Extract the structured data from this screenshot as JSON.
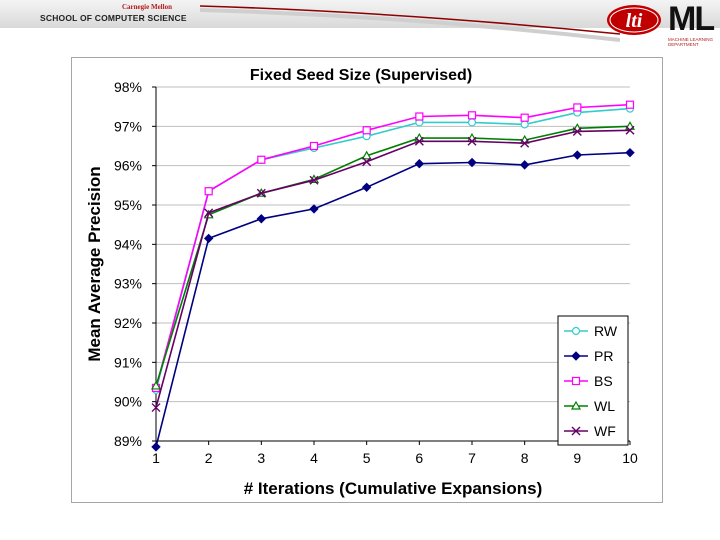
{
  "header": {
    "org_small": "Carnegie Mellon",
    "school": "SCHOOL OF COMPUTER SCIENCE",
    "logo_lti": "lti",
    "logo_ml": "ML",
    "logo_ml_sub": "MACHINE LEARNING DEPARTMENT"
  },
  "colors": {
    "RW": "#33cccc",
    "PR": "#000080",
    "BS": "#ff00ff",
    "WL": "#008000",
    "WF": "#660066",
    "accent_red": "#b31b1b"
  },
  "chart_data": {
    "type": "line",
    "title": "Fixed Seed Size (Supervised)",
    "xlabel": "# Iterations (Cumulative Expansions)",
    "ylabel": "Mean Average Precision",
    "x": [
      1,
      2,
      3,
      4,
      5,
      6,
      7,
      8,
      9,
      10
    ],
    "ylim": [
      89,
      98
    ],
    "yticks": [
      "89%",
      "90%",
      "91%",
      "92%",
      "93%",
      "94%",
      "95%",
      "96%",
      "97%",
      "98%"
    ],
    "xticks": [
      "1",
      "2",
      "3",
      "4",
      "5",
      "6",
      "7",
      "8",
      "9",
      "10"
    ],
    "grid": "horizontal",
    "legend_position": "bottom-right",
    "series": [
      {
        "name": "RW",
        "marker": "circle",
        "values": [
          90.3,
          95.35,
          96.15,
          96.45,
          96.75,
          97.1,
          97.1,
          97.05,
          97.35,
          97.45
        ]
      },
      {
        "name": "PR",
        "marker": "diamond",
        "values": [
          88.85,
          94.15,
          94.65,
          94.9,
          95.45,
          96.05,
          96.08,
          96.02,
          96.27,
          96.33
        ]
      },
      {
        "name": "BS",
        "marker": "square",
        "values": [
          90.35,
          95.35,
          96.15,
          96.5,
          96.9,
          97.25,
          97.28,
          97.22,
          97.48,
          97.55
        ]
      },
      {
        "name": "WL",
        "marker": "triangle",
        "values": [
          90.4,
          94.75,
          95.3,
          95.65,
          96.25,
          96.7,
          96.7,
          96.65,
          96.95,
          97.0
        ]
      },
      {
        "name": "WF",
        "marker": "x",
        "values": [
          89.85,
          94.8,
          95.3,
          95.63,
          96.1,
          96.62,
          96.62,
          96.57,
          96.87,
          96.9
        ]
      }
    ]
  }
}
